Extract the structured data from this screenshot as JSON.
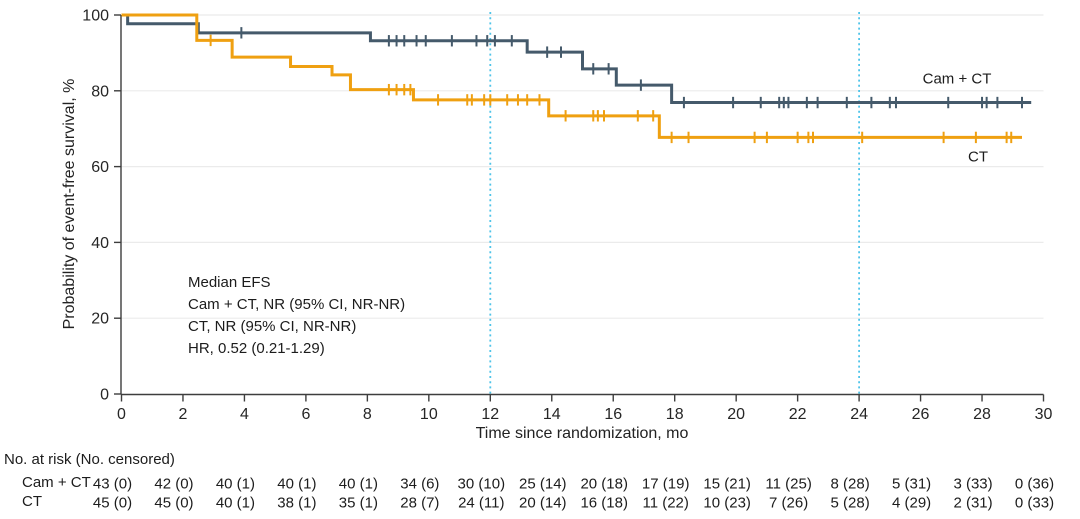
{
  "colors": {
    "cam_ct": "#455A6B",
    "ct": "#EFA011",
    "reference_line": "#4FC4E9",
    "grid": "#EBEBEB",
    "axis": "#3D3D3D",
    "text": "#1C1C1C"
  },
  "chart_data": {
    "type": "line",
    "variant": "kaplan-meier-step",
    "title": "",
    "xlabel": "Time since randomization, mo",
    "ylabel": "Probability of event-free survival, %",
    "xlim": [
      0,
      30
    ],
    "ylim": [
      0,
      100
    ],
    "xticks": [
      0,
      2,
      4,
      6,
      8,
      10,
      12,
      14,
      16,
      18,
      20,
      22,
      24,
      26,
      28,
      30
    ],
    "yticks": [
      0,
      20,
      40,
      60,
      80,
      100
    ],
    "grid": "horizontal",
    "legend_position": "curve-end-labels",
    "reference_lines_x": [
      12,
      24
    ],
    "annotation": {
      "lines": [
        "Median EFS",
        "Cam + CT, NR (95% CI, NR-NR)",
        "CT, NR (95% CI, NR-NR)",
        "HR, 0.52 (0.21-1.29)"
      ]
    },
    "series": [
      {
        "name": "Cam + CT",
        "color": "#455A6B",
        "steps": [
          [
            0,
            100
          ],
          [
            0.2,
            97.7
          ],
          [
            2.5,
            95.3
          ],
          [
            8.1,
            93.2
          ],
          [
            13.2,
            90.2
          ],
          [
            15.0,
            85.8
          ],
          [
            16.1,
            81.5
          ],
          [
            17.9,
            76.9
          ]
        ],
        "end": 29.6,
        "censors": [
          3.9,
          8.7,
          8.95,
          9.2,
          9.6,
          9.9,
          10.75,
          11.55,
          11.9,
          12.15,
          12.7,
          13.85,
          14.3,
          15.35,
          15.85,
          16.9,
          18.3,
          19.9,
          20.8,
          21.4,
          21.55,
          21.7,
          22.3,
          22.65,
          23.6,
          24.4,
          25.0,
          25.2,
          26.9,
          28.0,
          28.15,
          28.5,
          29.3
        ]
      },
      {
        "name": "CT",
        "color": "#EFA011",
        "steps": [
          [
            0,
            100
          ],
          [
            2.45,
            93.3
          ],
          [
            3.6,
            88.9
          ],
          [
            5.5,
            86.4
          ],
          [
            6.85,
            84.2
          ],
          [
            7.45,
            80.3
          ],
          [
            9.5,
            77.6
          ],
          [
            13.9,
            73.4
          ],
          [
            17.5,
            67.7
          ]
        ],
        "end": 29.3,
        "censors": [
          2.9,
          8.7,
          8.95,
          9.2,
          9.4,
          10.3,
          11.25,
          11.4,
          11.8,
          12.0,
          12.55,
          12.9,
          13.2,
          13.6,
          14.45,
          15.35,
          15.5,
          15.7,
          16.8,
          17.3,
          17.9,
          18.45,
          20.6,
          21.0,
          22.0,
          22.35,
          22.5,
          24.1,
          26.75,
          27.8,
          28.8,
          28.95
        ]
      }
    ]
  },
  "risk_table": {
    "header": "No. at risk (No. censored)",
    "times": [
      0,
      2,
      4,
      6,
      8,
      10,
      12,
      14,
      16,
      18,
      20,
      22,
      24,
      26,
      28,
      30
    ],
    "rows": [
      {
        "label": "Cam + CT",
        "values": [
          "43 (0)",
          "42 (0)",
          "40 (1)",
          "40 (1)",
          "40 (1)",
          "34 (6)",
          "30 (10)",
          "25 (14)",
          "20 (18)",
          "17 (19)",
          "15 (21)",
          "11 (25)",
          "8 (28)",
          "5 (31)",
          "3 (33)",
          "0 (36)"
        ]
      },
      {
        "label": "CT",
        "values": [
          "45 (0)",
          "45 (0)",
          "40 (1)",
          "38 (1)",
          "35 (1)",
          "28 (7)",
          "24 (11)",
          "20 (14)",
          "16 (18)",
          "11 (22)",
          "10 (23)",
          "7 (26)",
          "5 (28)",
          "4 (29)",
          "2 (31)",
          "0 (33)"
        ]
      }
    ]
  }
}
